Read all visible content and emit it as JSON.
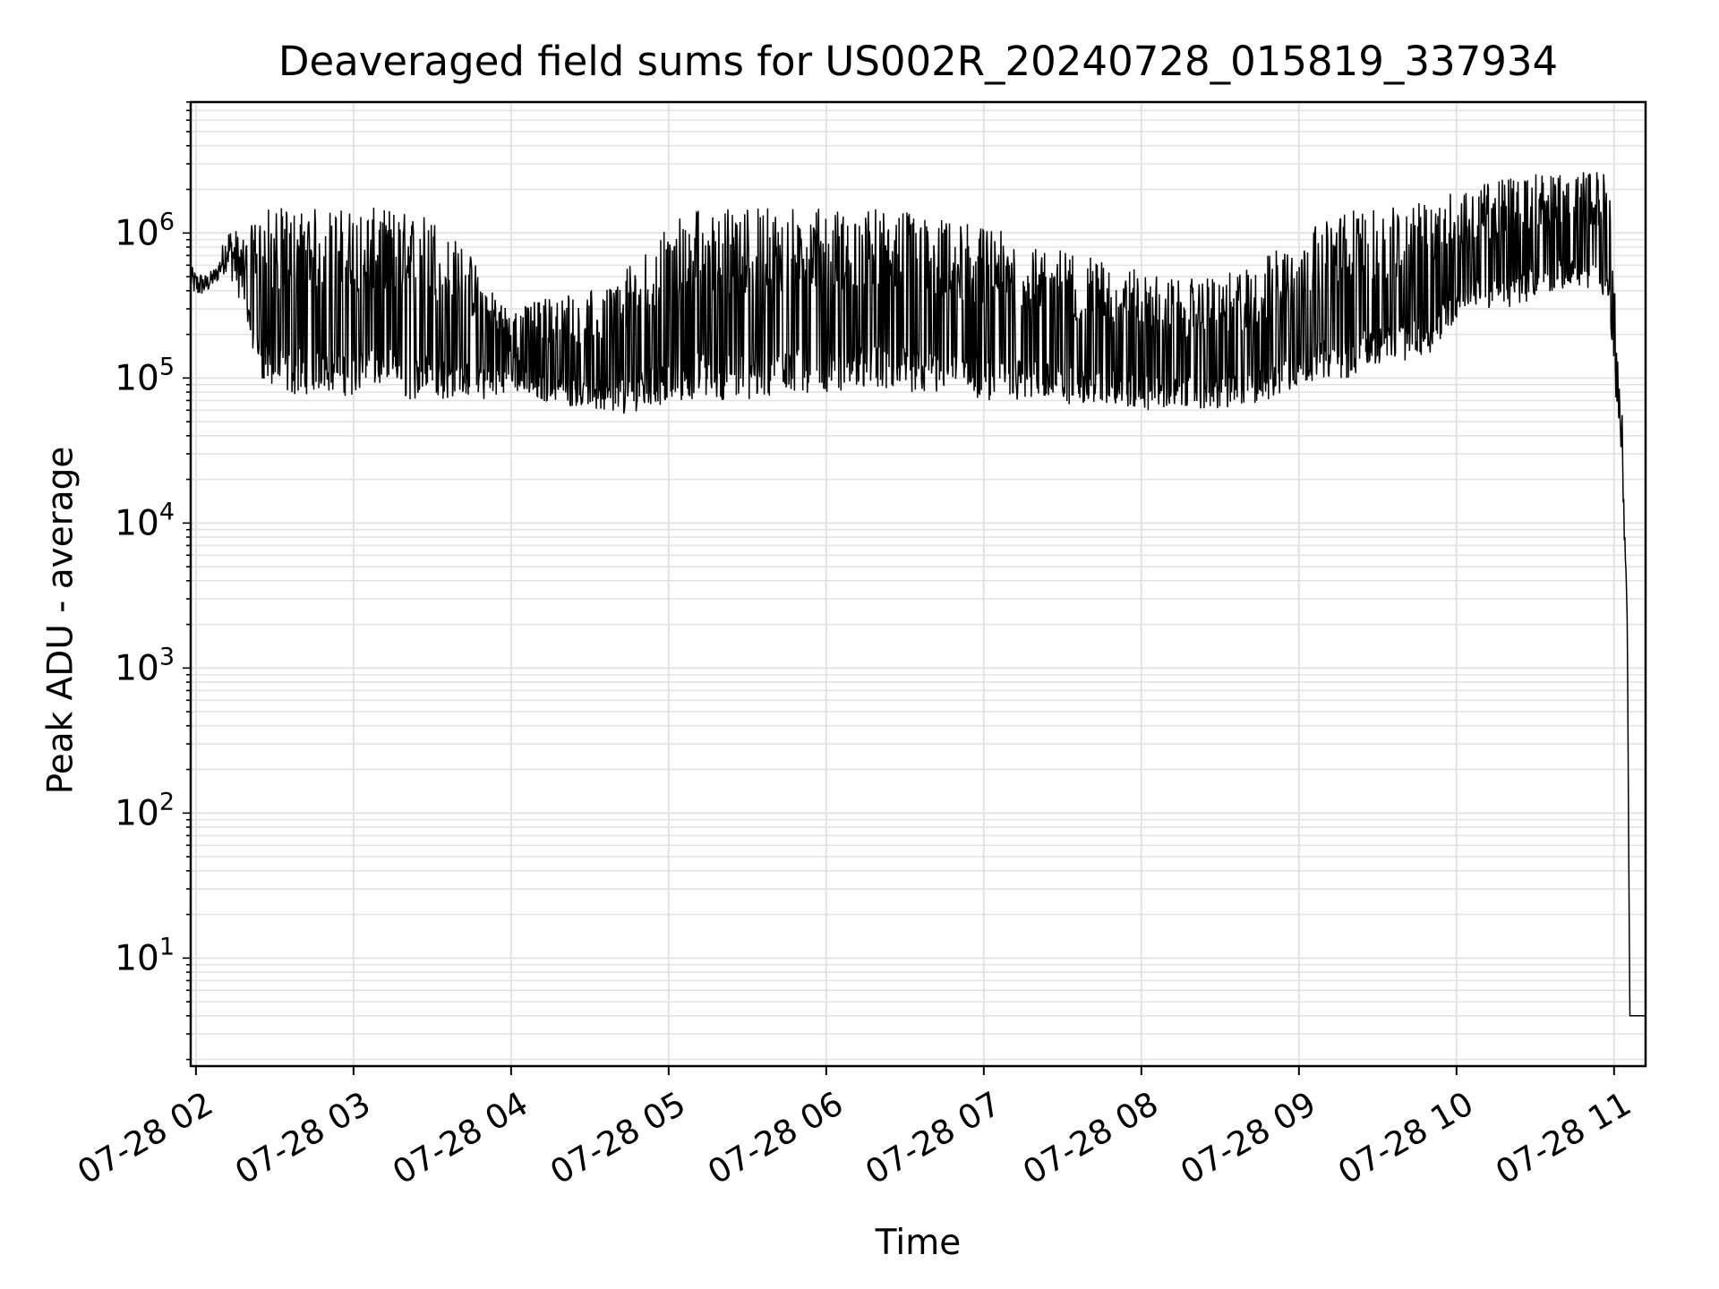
{
  "chart_data": {
    "type": "line",
    "title": "Deaveraged field sums for US002R_20240728_015819_337934",
    "xlabel": "Time",
    "ylabel": "Peak ADU - average",
    "x_scale": "time",
    "y_scale": "log",
    "xlim": [
      "07-28 01:58",
      "07-28 11:12"
    ],
    "ylim": [
      1.8,
      8000000
    ],
    "grid": true,
    "line_color": "#000000",
    "grid_color": "#e3e3e3",
    "x_ticks": [
      "07-28 02",
      "07-28 03",
      "07-28 04",
      "07-28 05",
      "07-28 06",
      "07-28 07",
      "07-28 08",
      "07-28 09",
      "07-28 10",
      "07-28 11"
    ],
    "y_ticks": [
      {
        "value": 10,
        "base": "10",
        "exp": "1"
      },
      {
        "value": 100,
        "base": "10",
        "exp": "2"
      },
      {
        "value": 1000,
        "base": "10",
        "exp": "3"
      },
      {
        "value": 10000,
        "base": "10",
        "exp": "4"
      },
      {
        "value": 100000,
        "base": "10",
        "exp": "5"
      },
      {
        "value": 1000000,
        "base": "10",
        "exp": "6"
      }
    ],
    "series": [
      {
        "x": [
          "07-28 01:58",
          "07-28 02:00",
          "07-28 02:04",
          "07-28 02:08",
          "07-28 02:12",
          "07-28 02:15",
          "07-28 02:18",
          "07-28 02:22",
          "07-28 02:26",
          "07-28 02:30",
          "07-28 02:35",
          "07-28 02:40",
          "07-28 02:45",
          "07-28 02:50",
          "07-28 02:55",
          "07-28 03:00",
          "07-28 03:05",
          "07-28 03:10",
          "07-28 03:15",
          "07-28 03:20",
          "07-28 03:25",
          "07-28 03:30",
          "07-28 03:35",
          "07-28 03:40",
          "07-28 03:45",
          "07-28 03:50",
          "07-28 03:55",
          "07-28 04:00",
          "07-28 04:10",
          "07-28 04:20",
          "07-28 04:30",
          "07-28 04:40",
          "07-28 04:50",
          "07-28 05:00",
          "07-28 05:10",
          "07-28 05:20",
          "07-28 05:30",
          "07-28 05:40",
          "07-28 05:50",
          "07-28 06:00",
          "07-28 06:10",
          "07-28 06:20",
          "07-28 06:30",
          "07-28 06:40",
          "07-28 06:50",
          "07-28 07:00",
          "07-28 07:10",
          "07-28 07:20",
          "07-28 07:30",
          "07-28 07:40",
          "07-28 07:50",
          "07-28 08:00",
          "07-28 08:10",
          "07-28 08:20",
          "07-28 08:30",
          "07-28 08:40",
          "07-28 08:50",
          "07-28 09:00",
          "07-28 09:10",
          "07-28 09:20",
          "07-28 09:30",
          "07-28 09:40",
          "07-28 09:50",
          "07-28 10:00",
          "07-28 10:10",
          "07-28 10:20",
          "07-28 10:30",
          "07-28 10:40",
          "07-28 10:50",
          "07-28 10:58",
          "07-28 11:01",
          "07-28 11:03",
          "07-28 11:05",
          "07-28 11:06",
          "07-28 11:07",
          "07-28 11:08",
          "07-28 11:09",
          "07-28 11:12"
        ],
        "low": [
          400000,
          350000,
          380000,
          450000,
          550000,
          400000,
          300000,
          150000,
          90000,
          80000,
          75000,
          75000,
          80000,
          80000,
          75000,
          75000,
          80000,
          85000,
          80000,
          70000,
          70000,
          75000,
          70000,
          75000,
          75000,
          70000,
          75000,
          85000,
          70000,
          65000,
          60000,
          55000,
          60000,
          65000,
          70000,
          70000,
          70000,
          75000,
          75000,
          80000,
          80000,
          80000,
          80000,
          75000,
          75000,
          70000,
          70000,
          70000,
          65000,
          65000,
          65000,
          60000,
          60000,
          60000,
          60000,
          60000,
          70000,
          90000,
          100000,
          100000,
          120000,
          130000,
          150000,
          250000,
          300000,
          300000,
          350000,
          400000,
          400000,
          300000,
          60000,
          20000,
          2000,
          4,
          4,
          4,
          4,
          4
        ],
        "high": [
          600000,
          550000,
          520000,
          600000,
          1150000,
          1100000,
          900000,
          1200000,
          1500000,
          1500000,
          1500000,
          1500000,
          1500000,
          1500000,
          1500000,
          1500000,
          1500000,
          1500000,
          1500000,
          1400000,
          1400000,
          1400000,
          1000000,
          900000,
          700000,
          500000,
          400000,
          300000,
          350000,
          400000,
          400000,
          500000,
          700000,
          1200000,
          1500000,
          1500000,
          1500000,
          1500000,
          1500000,
          1500000,
          1500000,
          1500000,
          1400000,
          1300000,
          1200000,
          1100000,
          1000000,
          900000,
          800000,
          700000,
          600000,
          550000,
          500000,
          500000,
          500000,
          600000,
          800000,
          1000000,
          1200000,
          1500000,
          1500000,
          1500000,
          1700000,
          2000000,
          2200000,
          2500000,
          2700000,
          2800000,
          2800000,
          2600000,
          250000,
          60000,
          3000,
          4,
          4,
          4,
          4,
          4
        ]
      }
    ]
  }
}
